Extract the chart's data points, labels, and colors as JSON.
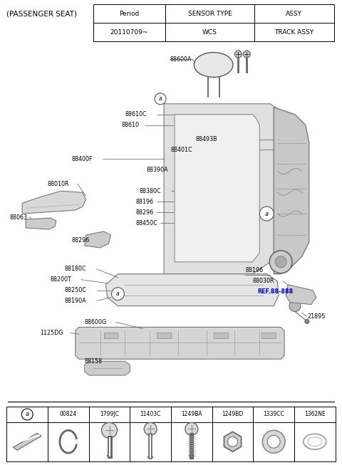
{
  "title": "(PASSENGER SEAT)",
  "bg_color": "#ffffff",
  "table": {
    "headers": [
      "Period",
      "SENSOR TYPE",
      "ASSY"
    ],
    "row": [
      "20110709~",
      "WCS",
      "TRACK ASSY"
    ]
  },
  "bottom_table": {
    "items": [
      "a",
      "00824",
      "1799JC",
      "11403C",
      "1249BA",
      "1249BD",
      "1339CC",
      "1362NE"
    ]
  }
}
